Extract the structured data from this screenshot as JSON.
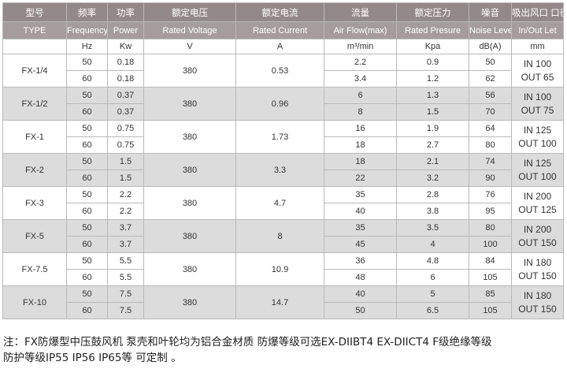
{
  "header_cn": [
    "型号",
    "频率",
    "功率",
    "额定电压",
    "额定电流",
    "流量",
    "额定压力",
    "噪音",
    "吸出风口 口径"
  ],
  "header_en": [
    "TYPE",
    "Frequency",
    "Power",
    "Rated Voltage",
    "Rated Current",
    "Air Flow(max)",
    "Rated Presure",
    "Noise Level",
    "In/Out Let"
  ],
  "header_unit": [
    "",
    "Hz",
    "Kw",
    "V",
    "A",
    "m³/min",
    "Kpa",
    "dB(A)",
    "mm"
  ],
  "models": [
    {
      "type": "FX-1/4",
      "voltage": "380",
      "current": "0.53",
      "in": "IN 100",
      "out": "OUT 65",
      "rows": [
        {
          "hz": "50",
          "kw": "0.18",
          "flow": "2.2",
          "pressure": "0.9",
          "noise": "50"
        },
        {
          "hz": "60",
          "kw": "0.18",
          "flow": "3.4",
          "pressure": "1.2",
          "noise": "62"
        }
      ]
    },
    {
      "type": "FX-1/2",
      "voltage": "380",
      "current": "0.96",
      "in": "IN 100",
      "out": "OUT 75",
      "rows": [
        {
          "hz": "50",
          "kw": "0.37",
          "flow": "6",
          "pressure": "1.3",
          "noise": "56"
        },
        {
          "hz": "60",
          "kw": "0.37",
          "flow": "8",
          "pressure": "1.5",
          "noise": "70"
        }
      ]
    },
    {
      "type": "FX-1",
      "voltage": "380",
      "current": "1.73",
      "in": "IN 125",
      "out": "OUT 100",
      "rows": [
        {
          "hz": "50",
          "kw": "0.75",
          "flow": "16",
          "pressure": "1.9",
          "noise": "64"
        },
        {
          "hz": "60",
          "kw": "0.75",
          "flow": "18",
          "pressure": "2.7",
          "noise": "80"
        }
      ]
    },
    {
      "type": "FX-2",
      "voltage": "380",
      "current": "3.3",
      "in": "IN 125",
      "out": "OUT 100",
      "rows": [
        {
          "hz": "50",
          "kw": "1.5",
          "flow": "18",
          "pressure": "2.1",
          "noise": "74"
        },
        {
          "hz": "60",
          "kw": "1.5",
          "flow": "22",
          "pressure": "3.2",
          "noise": "90"
        }
      ]
    },
    {
      "type": "FX-3",
      "voltage": "380",
      "current": "4.7",
      "in": "IN 200",
      "out": "OUT 125",
      "rows": [
        {
          "hz": "50",
          "kw": "2.2",
          "flow": "35",
          "pressure": "2.8",
          "noise": "76"
        },
        {
          "hz": "60",
          "kw": "2.2",
          "flow": "40",
          "pressure": "3.8",
          "noise": "95"
        }
      ]
    },
    {
      "type": "FX-5",
      "voltage": "380",
      "current": "8",
      "in": "IN 200",
      "out": "OUT 150",
      "rows": [
        {
          "hz": "50",
          "kw": "3.7",
          "flow": "35",
          "pressure": "3.5",
          "noise": "80"
        },
        {
          "hz": "60",
          "kw": "3.7",
          "flow": "45",
          "pressure": "4",
          "noise": "100"
        }
      ]
    },
    {
      "type": "FX-7.5",
      "voltage": "380",
      "current": "10.9",
      "in": "IN 180",
      "out": "OUT 150",
      "rows": [
        {
          "hz": "50",
          "kw": "5.5",
          "flow": "36",
          "pressure": "4.8",
          "noise": "84"
        },
        {
          "hz": "60",
          "kw": "5.5",
          "flow": "48",
          "pressure": "6",
          "noise": "105"
        }
      ]
    },
    {
      "type": "FX-10",
      "voltage": "380",
      "current": "14.7",
      "in": "IN 180",
      "out": "OUT 150",
      "rows": [
        {
          "hz": "50",
          "kw": "7.5",
          "flow": "40",
          "pressure": "5",
          "noise": "85"
        },
        {
          "hz": "60",
          "kw": "7.5",
          "flow": "50",
          "pressure": "6.5",
          "noise": "105"
        }
      ]
    }
  ],
  "note": {
    "line1": "注：FX防爆型中压鼓风机 泵壳和叶轮均为铝合金材质 防爆等级可选EX-DIIBT4 EX-DIICT4  F级绝缘等级",
    "line2": "防护等级IP55 IP56  IP65等 可定制 。"
  }
}
